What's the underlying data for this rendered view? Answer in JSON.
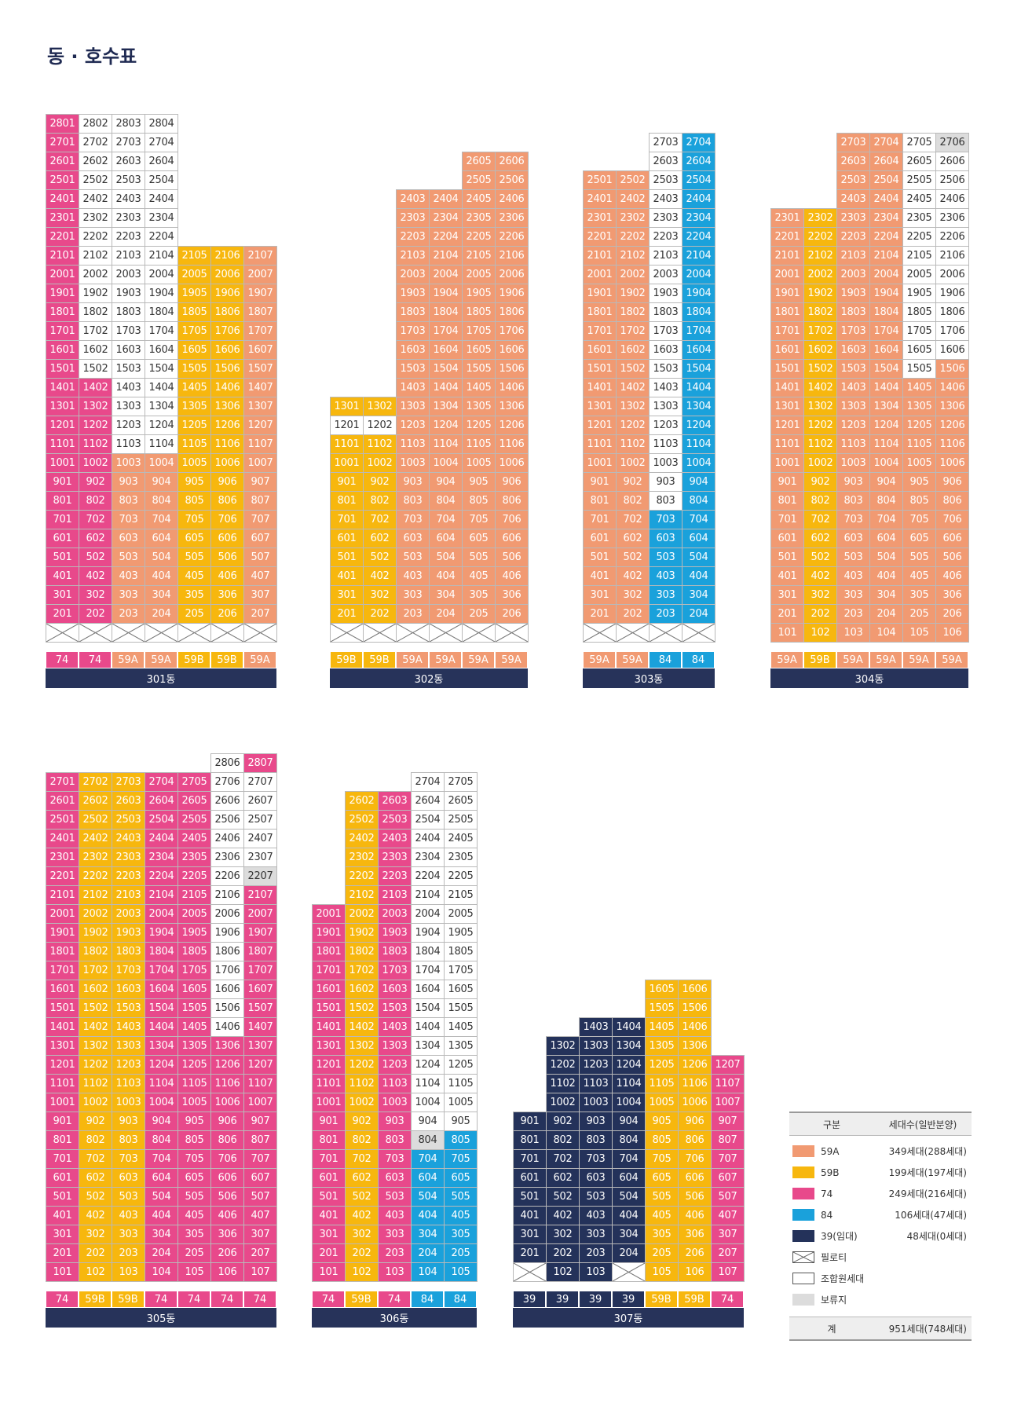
{
  "title": "동 · 호수표",
  "colors": {
    "A": "#f19a72",
    "B": "#f7b70e",
    "7": "#e8498b",
    "8": "#1aa1db",
    "3": "#24325a",
    "W": "#ffffff",
    "G": "#dcdcdc"
  },
  "buildings": [
    {
      "name": "301동",
      "lines": [
        "01",
        "02",
        "03",
        "04",
        "05",
        "06",
        "07"
      ],
      "types": [
        "74",
        "74",
        "59A",
        "59A",
        "59B",
        "59B",
        "59A"
      ],
      "rows": [
        {
          "floor": 28,
          "codes": "7WWW---"
        },
        {
          "floor": 27,
          "codes": "7WWW---"
        },
        {
          "floor": 26,
          "codes": "7WWW---"
        },
        {
          "floor": 25,
          "codes": "7WWW---"
        },
        {
          "floor": 24,
          "codes": "7WWW---"
        },
        {
          "floor": 23,
          "codes": "7WWW---"
        },
        {
          "floor": 22,
          "codes": "7WWW---"
        },
        {
          "floor": 21,
          "codes": "7WWWBBA"
        },
        {
          "floor": 20,
          "codes": "7WWWBBA"
        },
        {
          "floor": 19,
          "codes": "7WWWBBA"
        },
        {
          "floor": 18,
          "codes": "7WWWBBA"
        },
        {
          "floor": 17,
          "codes": "7WWWBBA"
        },
        {
          "floor": 16,
          "codes": "7WWWBBA"
        },
        {
          "floor": 15,
          "codes": "7WWWBBA"
        },
        {
          "floor": 14,
          "codes": "77WWBBA"
        },
        {
          "floor": 13,
          "codes": "77WWBBA"
        },
        {
          "floor": 12,
          "codes": "77WWBBA"
        },
        {
          "floor": 11,
          "codes": "77WWBBA"
        },
        {
          "floor": 10,
          "codes": "77AABBA"
        },
        {
          "floor": 9,
          "codes": "77AABBA"
        },
        {
          "floor": 8,
          "codes": "77AABBA"
        },
        {
          "floor": 7,
          "codes": "77AABBA"
        },
        {
          "floor": 6,
          "codes": "77AABBA"
        },
        {
          "floor": 5,
          "codes": "77AABBA"
        },
        {
          "floor": 4,
          "codes": "77AABBA"
        },
        {
          "floor": 3,
          "codes": "77AABBA"
        },
        {
          "floor": 2,
          "codes": "77AABBA"
        },
        {
          "floor": 1,
          "codes": "XXXXXXX"
        }
      ]
    },
    {
      "name": "302동",
      "lines": [
        "01",
        "02",
        "03",
        "04",
        "05",
        "06"
      ],
      "types": [
        "59B",
        "59B",
        "59A",
        "59A",
        "59A",
        "59A"
      ],
      "rows": [
        {
          "floor": 26,
          "codes": "----AA"
        },
        {
          "floor": 25,
          "codes": "----AA"
        },
        {
          "floor": 24,
          "codes": "--AAAA"
        },
        {
          "floor": 23,
          "codes": "--AAAA"
        },
        {
          "floor": 22,
          "codes": "--AAAA"
        },
        {
          "floor": 21,
          "codes": "--AAAA"
        },
        {
          "floor": 20,
          "codes": "--AAAA"
        },
        {
          "floor": 19,
          "codes": "--AAAA"
        },
        {
          "floor": 18,
          "codes": "--AAAA"
        },
        {
          "floor": 17,
          "codes": "--AAAA"
        },
        {
          "floor": 16,
          "codes": "--AAAA"
        },
        {
          "floor": 15,
          "codes": "--AAAA"
        },
        {
          "floor": 14,
          "codes": "--AAAA"
        },
        {
          "floor": 13,
          "codes": "BBAAAA"
        },
        {
          "floor": 12,
          "codes": "WWAAAA"
        },
        {
          "floor": 11,
          "codes": "BBAAAA"
        },
        {
          "floor": 10,
          "codes": "BBAAAA"
        },
        {
          "floor": 9,
          "codes": "BBAAAA"
        },
        {
          "floor": 8,
          "codes": "BBAAAA"
        },
        {
          "floor": 7,
          "codes": "BBAAAA"
        },
        {
          "floor": 6,
          "codes": "BBAAAA"
        },
        {
          "floor": 5,
          "codes": "BBAAAA"
        },
        {
          "floor": 4,
          "codes": "BBAAAA"
        },
        {
          "floor": 3,
          "codes": "BBAAAA"
        },
        {
          "floor": 2,
          "codes": "BBAAAA"
        },
        {
          "floor": 1,
          "codes": "XXXXXX"
        }
      ]
    },
    {
      "name": "303동",
      "lines": [
        "01",
        "02",
        "03",
        "04"
      ],
      "types": [
        "59A",
        "59A",
        "84",
        "84"
      ],
      "rows": [
        {
          "floor": 27,
          "codes": "--W8"
        },
        {
          "floor": 26,
          "codes": "--W8"
        },
        {
          "floor": 25,
          "codes": "AAW8"
        },
        {
          "floor": 24,
          "codes": "AAW8"
        },
        {
          "floor": 23,
          "codes": "AAW8"
        },
        {
          "floor": 22,
          "codes": "AAW8"
        },
        {
          "floor": 21,
          "codes": "AAW8"
        },
        {
          "floor": 20,
          "codes": "AAW8"
        },
        {
          "floor": 19,
          "codes": "AAW8"
        },
        {
          "floor": 18,
          "codes": "AAW8"
        },
        {
          "floor": 17,
          "codes": "AAW8"
        },
        {
          "floor": 16,
          "codes": "AAW8"
        },
        {
          "floor": 15,
          "codes": "AAW8"
        },
        {
          "floor": 14,
          "codes": "AAW8"
        },
        {
          "floor": 13,
          "codes": "AAW8"
        },
        {
          "floor": 12,
          "codes": "AAW8"
        },
        {
          "floor": 11,
          "codes": "AAW8"
        },
        {
          "floor": 10,
          "codes": "AAW8"
        },
        {
          "floor": 9,
          "codes": "AAW8"
        },
        {
          "floor": 8,
          "codes": "AAW8"
        },
        {
          "floor": 7,
          "codes": "AA88"
        },
        {
          "floor": 6,
          "codes": "AA88"
        },
        {
          "floor": 5,
          "codes": "AA88"
        },
        {
          "floor": 4,
          "codes": "AA88"
        },
        {
          "floor": 3,
          "codes": "AA88"
        },
        {
          "floor": 2,
          "codes": "AA88"
        },
        {
          "floor": 1,
          "codes": "XXXX"
        }
      ]
    },
    {
      "name": "304동",
      "lines": [
        "01",
        "02",
        "03",
        "04",
        "05",
        "06"
      ],
      "types": [
        "59A",
        "59B",
        "59A",
        "59A",
        "59A",
        "59A"
      ],
      "rows": [
        {
          "floor": 27,
          "codes": "--AAWG"
        },
        {
          "floor": 26,
          "codes": "--AAWW"
        },
        {
          "floor": 25,
          "codes": "--AAWW"
        },
        {
          "floor": 24,
          "codes": "--AAWW"
        },
        {
          "floor": 23,
          "codes": "ABAAWW"
        },
        {
          "floor": 22,
          "codes": "ABAAWW"
        },
        {
          "floor": 21,
          "codes": "ABAAWW"
        },
        {
          "floor": 20,
          "codes": "ABAAWW"
        },
        {
          "floor": 19,
          "codes": "ABAAWW"
        },
        {
          "floor": 18,
          "codes": "ABAAWW"
        },
        {
          "floor": 17,
          "codes": "ABAAWW"
        },
        {
          "floor": 16,
          "codes": "ABAAWW"
        },
        {
          "floor": 15,
          "codes": "ABAAWA"
        },
        {
          "floor": 14,
          "codes": "ABAAAA"
        },
        {
          "floor": 13,
          "codes": "ABAAAA"
        },
        {
          "floor": 12,
          "codes": "ABAAAA"
        },
        {
          "floor": 11,
          "codes": "ABAAAA"
        },
        {
          "floor": 10,
          "codes": "ABAAAA"
        },
        {
          "floor": 9,
          "codes": "ABAAAA"
        },
        {
          "floor": 8,
          "codes": "ABAAAA"
        },
        {
          "floor": 7,
          "codes": "ABAAAA"
        },
        {
          "floor": 6,
          "codes": "ABAAAA"
        },
        {
          "floor": 5,
          "codes": "ABAAAA"
        },
        {
          "floor": 4,
          "codes": "ABAAAA"
        },
        {
          "floor": 3,
          "codes": "ABAAAA"
        },
        {
          "floor": 2,
          "codes": "ABAAAA"
        },
        {
          "floor": 1,
          "codes": "ABAAAA"
        }
      ]
    },
    {
      "name": "305동",
      "lines": [
        "01",
        "02",
        "03",
        "04",
        "05",
        "06",
        "07"
      ],
      "types": [
        "74",
        "59B",
        "59B",
        "74",
        "74",
        "74",
        "74"
      ],
      "rows": [
        {
          "floor": 28,
          "codes": "-----W7"
        },
        {
          "floor": 27,
          "codes": "7BB77WW"
        },
        {
          "floor": 26,
          "codes": "7BB77WW"
        },
        {
          "floor": 25,
          "codes": "7BB77WW"
        },
        {
          "floor": 24,
          "codes": "7BB77WW"
        },
        {
          "floor": 23,
          "codes": "7BB77WW"
        },
        {
          "floor": 22,
          "codes": "7BB77WG"
        },
        {
          "floor": 21,
          "codes": "7BB77W7"
        },
        {
          "floor": 20,
          "codes": "7BB77W7"
        },
        {
          "floor": 19,
          "codes": "7BB77W7"
        },
        {
          "floor": 18,
          "codes": "7BB77W7"
        },
        {
          "floor": 17,
          "codes": "7BB77W7"
        },
        {
          "floor": 16,
          "codes": "7BB77W7"
        },
        {
          "floor": 15,
          "codes": "7BB77W7"
        },
        {
          "floor": 14,
          "codes": "7BB77W7"
        },
        {
          "floor": 13,
          "codes": "7BB7777"
        },
        {
          "floor": 12,
          "codes": "7BB7777"
        },
        {
          "floor": 11,
          "codes": "7BB7777"
        },
        {
          "floor": 10,
          "codes": "7BB7777"
        },
        {
          "floor": 9,
          "codes": "7BB7777"
        },
        {
          "floor": 8,
          "codes": "7BB7777"
        },
        {
          "floor": 7,
          "codes": "7BB7777"
        },
        {
          "floor": 6,
          "codes": "7BB7777"
        },
        {
          "floor": 5,
          "codes": "7BB7777"
        },
        {
          "floor": 4,
          "codes": "7BB7777"
        },
        {
          "floor": 3,
          "codes": "7BB7777"
        },
        {
          "floor": 2,
          "codes": "7BB7777"
        },
        {
          "floor": 1,
          "codes": "7BB7777"
        }
      ]
    },
    {
      "name": "306동",
      "lines": [
        "01",
        "02",
        "03",
        "04",
        "05"
      ],
      "types": [
        "74",
        "59B",
        "74",
        "84",
        "84"
      ],
      "rows": [
        {
          "floor": 27,
          "codes": "---WW"
        },
        {
          "floor": 26,
          "codes": "-B7WW"
        },
        {
          "floor": 25,
          "codes": "-B7WW"
        },
        {
          "floor": 24,
          "codes": "-B7WW"
        },
        {
          "floor": 23,
          "codes": "-B7WW"
        },
        {
          "floor": 22,
          "codes": "-B7WW"
        },
        {
          "floor": 21,
          "codes": "-B7WW"
        },
        {
          "floor": 20,
          "codes": "7B7WW"
        },
        {
          "floor": 19,
          "codes": "7B7WW"
        },
        {
          "floor": 18,
          "codes": "7B7WW"
        },
        {
          "floor": 17,
          "codes": "7B7WW"
        },
        {
          "floor": 16,
          "codes": "7B7WW"
        },
        {
          "floor": 15,
          "codes": "7B7WW"
        },
        {
          "floor": 14,
          "codes": "7B7WW"
        },
        {
          "floor": 13,
          "codes": "7B7WW"
        },
        {
          "floor": 12,
          "codes": "7B7WW"
        },
        {
          "floor": 11,
          "codes": "7B7WW"
        },
        {
          "floor": 10,
          "codes": "7B7WW"
        },
        {
          "floor": 9,
          "codes": "7B7WW"
        },
        {
          "floor": 8,
          "codes": "7B7G8"
        },
        {
          "floor": 7,
          "codes": "7B788"
        },
        {
          "floor": 6,
          "codes": "7B788"
        },
        {
          "floor": 5,
          "codes": "7B788"
        },
        {
          "floor": 4,
          "codes": "7B788"
        },
        {
          "floor": 3,
          "codes": "7B788"
        },
        {
          "floor": 2,
          "codes": "7B788"
        },
        {
          "floor": 1,
          "codes": "7B788"
        }
      ]
    },
    {
      "name": "307동",
      "lines": [
        "01",
        "02",
        "03",
        "04",
        "05",
        "06",
        "07"
      ],
      "types": [
        "39",
        "39",
        "39",
        "39",
        "59B",
        "59B",
        "74"
      ],
      "rows": [
        {
          "floor": 16,
          "codes": "----BB-"
        },
        {
          "floor": 15,
          "codes": "----BB-"
        },
        {
          "floor": 14,
          "codes": "--33BB-"
        },
        {
          "floor": 13,
          "codes": "-333BB-"
        },
        {
          "floor": 12,
          "codes": "-333BB7"
        },
        {
          "floor": 11,
          "codes": "-333BB7"
        },
        {
          "floor": 10,
          "codes": "-333BB7"
        },
        {
          "floor": 9,
          "codes": "3333BB7"
        },
        {
          "floor": 8,
          "codes": "3333BB7"
        },
        {
          "floor": 7,
          "codes": "3333BB7"
        },
        {
          "floor": 6,
          "codes": "3333BB7"
        },
        {
          "floor": 5,
          "codes": "3333BB7"
        },
        {
          "floor": 4,
          "codes": "3333BB7"
        },
        {
          "floor": 3,
          "codes": "3333BB7"
        },
        {
          "floor": 2,
          "codes": "3333BB7"
        },
        {
          "floor": 1,
          "codes": "X33XBB7"
        }
      ]
    }
  ],
  "legend": {
    "header_left": "구분",
    "header_right": "세대수(일반분양)",
    "rows": [
      {
        "swatch": "A",
        "label": "59A",
        "count": "349세대(288세대)"
      },
      {
        "swatch": "B",
        "label": "59B",
        "count": "199세대(197세대)"
      },
      {
        "swatch": "7",
        "label": "74",
        "count": "249세대(216세대)"
      },
      {
        "swatch": "8",
        "label": "84",
        "count": "106세대(47세대)"
      },
      {
        "swatch": "3",
        "label": "39(임대)",
        "count": "48세대(0세대)"
      },
      {
        "swatch": "X",
        "label": "필로티",
        "count": ""
      },
      {
        "swatch": "W",
        "label": "조합원세대",
        "count": ""
      },
      {
        "swatch": "G",
        "label": "보류지",
        "count": ""
      }
    ],
    "footer_left": "계",
    "footer_right": "951세대(748세대)"
  }
}
